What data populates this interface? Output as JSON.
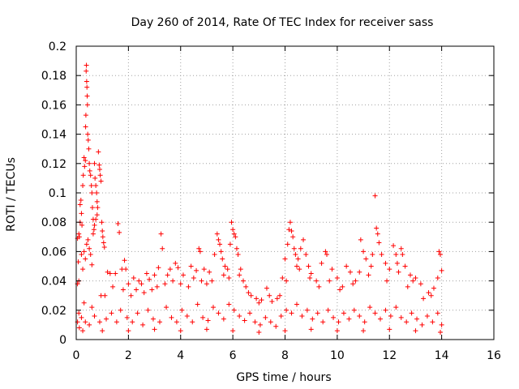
{
  "chart_data": {
    "type": "scatter",
    "title": "Day 260 of 2014, Rate Of TEC Index for receiver sass",
    "xlabel": "GPS time / hours",
    "ylabel": "ROTI / TECUs",
    "xlim": [
      0,
      16
    ],
    "ylim": [
      0,
      0.2
    ],
    "grid": true,
    "marker": "+",
    "color": "#ff0000",
    "x_ticks": [
      0,
      2,
      4,
      6,
      8,
      10,
      12,
      14,
      16
    ],
    "x_tick_labels": [
      "0",
      "2",
      "4",
      "6",
      "8",
      "10",
      "12",
      "14",
      "16"
    ],
    "y_ticks": [
      0,
      0.02,
      0.04,
      0.06,
      0.08,
      0.1,
      0.12,
      0.14,
      0.16,
      0.18,
      0.2
    ],
    "y_tick_labels": [
      "0",
      "0.02",
      "0.04",
      "0.06",
      "0.08",
      "0.1",
      "0.12",
      "0.14",
      "0.16",
      "0.18",
      "0.2"
    ],
    "series": [
      {
        "name": "ROTI",
        "points": [
          [
            0.05,
            0.069
          ],
          [
            0.08,
            0.053
          ],
          [
            0.1,
            0.04
          ],
          [
            0.12,
            0.07
          ],
          [
            0.15,
            0.092
          ],
          [
            0.18,
            0.095
          ],
          [
            0.2,
            0.086
          ],
          [
            0.22,
            0.078
          ],
          [
            0.25,
            0.105
          ],
          [
            0.27,
            0.112
          ],
          [
            0.3,
            0.124
          ],
          [
            0.32,
            0.118
          ],
          [
            0.35,
            0.122
          ],
          [
            0.36,
            0.145
          ],
          [
            0.37,
            0.153
          ],
          [
            0.38,
            0.183
          ],
          [
            0.39,
            0.187
          ],
          [
            0.4,
            0.176
          ],
          [
            0.41,
            0.172
          ],
          [
            0.42,
            0.166
          ],
          [
            0.43,
            0.16
          ],
          [
            0.44,
            0.14
          ],
          [
            0.46,
            0.136
          ],
          [
            0.48,
            0.13
          ],
          [
            0.5,
            0.12
          ],
          [
            0.52,
            0.115
          ],
          [
            0.55,
            0.112
          ],
          [
            0.58,
            0.105
          ],
          [
            0.6,
            0.1
          ],
          [
            0.62,
            0.09
          ],
          [
            0.65,
            0.082
          ],
          [
            0.68,
            0.075
          ],
          [
            0.7,
            0.12
          ],
          [
            0.72,
            0.11
          ],
          [
            0.75,
            0.105
          ],
          [
            0.78,
            0.1
          ],
          [
            0.8,
            0.094
          ],
          [
            0.82,
            0.09
          ],
          [
            0.85,
            0.128
          ],
          [
            0.88,
            0.119
          ],
          [
            0.9,
            0.116
          ],
          [
            0.92,
            0.112
          ],
          [
            0.95,
            0.108
          ],
          [
            0.98,
            0.08
          ],
          [
            1.0,
            0.074
          ],
          [
            1.02,
            0.07
          ],
          [
            1.05,
            0.066
          ],
          [
            1.08,
            0.063
          ],
          [
            0.45,
            0.068
          ],
          [
            0.5,
            0.062
          ],
          [
            0.55,
            0.058
          ],
          [
            0.6,
            0.051
          ],
          [
            0.65,
            0.072
          ],
          [
            0.7,
            0.078
          ],
          [
            0.75,
            0.082
          ],
          [
            0.8,
            0.085
          ],
          [
            0.3,
            0.06
          ],
          [
            0.35,
            0.055
          ],
          [
            0.25,
            0.048
          ],
          [
            0.2,
            0.058
          ],
          [
            0.4,
            0.065
          ],
          [
            0.15,
            0.08
          ],
          [
            0.1,
            0.072
          ],
          [
            0.05,
            0.038
          ],
          [
            1.2,
            0.046
          ],
          [
            1.3,
            0.045
          ],
          [
            1.5,
            0.045
          ],
          [
            1.6,
            0.079
          ],
          [
            1.65,
            0.073
          ],
          [
            1.75,
            0.048
          ],
          [
            1.85,
            0.054
          ],
          [
            1.9,
            0.048
          ],
          [
            2.0,
            0.038
          ],
          [
            2.2,
            0.042
          ],
          [
            2.4,
            0.04
          ],
          [
            2.5,
            0.038
          ],
          [
            2.7,
            0.045
          ],
          [
            2.8,
            0.041
          ],
          [
            3.0,
            0.044
          ],
          [
            3.15,
            0.049
          ],
          [
            3.25,
            0.072
          ],
          [
            3.3,
            0.062
          ],
          [
            3.5,
            0.044
          ],
          [
            3.6,
            0.048
          ],
          [
            3.8,
            0.052
          ],
          [
            3.9,
            0.049
          ],
          [
            4.1,
            0.044
          ],
          [
            4.4,
            0.05
          ],
          [
            4.6,
            0.047
          ],
          [
            4.7,
            0.062
          ],
          [
            4.75,
            0.06
          ],
          [
            4.9,
            0.048
          ],
          [
            5.1,
            0.046
          ],
          [
            5.3,
            0.058
          ],
          [
            5.4,
            0.072
          ],
          [
            5.45,
            0.068
          ],
          [
            5.5,
            0.065
          ],
          [
            5.55,
            0.06
          ],
          [
            5.6,
            0.055
          ],
          [
            5.7,
            0.05
          ],
          [
            5.8,
            0.048
          ],
          [
            5.9,
            0.065
          ],
          [
            5.95,
            0.08
          ],
          [
            6.0,
            0.075
          ],
          [
            6.05,
            0.072
          ],
          [
            6.1,
            0.07
          ],
          [
            6.15,
            0.062
          ],
          [
            6.2,
            0.058
          ],
          [
            6.3,
            0.048
          ],
          [
            6.5,
            0.036
          ],
          [
            6.7,
            0.03
          ],
          [
            6.9,
            0.028
          ],
          [
            7.1,
            0.027
          ],
          [
            7.3,
            0.035
          ],
          [
            7.5,
            0.026
          ],
          [
            7.7,
            0.028
          ],
          [
            7.9,
            0.042
          ],
          [
            8.0,
            0.055
          ],
          [
            8.1,
            0.065
          ],
          [
            8.15,
            0.075
          ],
          [
            8.2,
            0.08
          ],
          [
            8.25,
            0.074
          ],
          [
            8.3,
            0.07
          ],
          [
            8.35,
            0.062
          ],
          [
            8.4,
            0.058
          ],
          [
            8.5,
            0.055
          ],
          [
            8.6,
            0.062
          ],
          [
            8.7,
            0.068
          ],
          [
            8.8,
            0.058
          ],
          [
            8.9,
            0.05
          ],
          [
            9.0,
            0.045
          ],
          [
            9.2,
            0.04
          ],
          [
            9.4,
            0.052
          ],
          [
            9.55,
            0.06
          ],
          [
            9.6,
            0.058
          ],
          [
            9.8,
            0.048
          ],
          [
            10.0,
            0.042
          ],
          [
            10.2,
            0.036
          ],
          [
            10.35,
            0.05
          ],
          [
            10.5,
            0.046
          ],
          [
            10.7,
            0.04
          ],
          [
            10.85,
            0.046
          ],
          [
            10.9,
            0.068
          ],
          [
            11.0,
            0.06
          ],
          [
            11.1,
            0.055
          ],
          [
            11.3,
            0.05
          ],
          [
            11.35,
            0.058
          ],
          [
            11.45,
            0.098
          ],
          [
            11.5,
            0.076
          ],
          [
            11.55,
            0.072
          ],
          [
            11.6,
            0.066
          ],
          [
            11.7,
            0.058
          ],
          [
            11.85,
            0.052
          ],
          [
            12.0,
            0.048
          ],
          [
            12.15,
            0.064
          ],
          [
            12.25,
            0.058
          ],
          [
            12.3,
            0.052
          ],
          [
            12.45,
            0.062
          ],
          [
            12.5,
            0.058
          ],
          [
            12.6,
            0.05
          ],
          [
            12.8,
            0.044
          ],
          [
            13.0,
            0.042
          ],
          [
            13.2,
            0.038
          ],
          [
            13.5,
            0.032
          ],
          [
            13.7,
            0.035
          ],
          [
            13.85,
            0.042
          ],
          [
            13.9,
            0.06
          ],
          [
            13.95,
            0.058
          ],
          [
            14.0,
            0.047
          ],
          [
            13.6,
            0.03
          ],
          [
            13.3,
            0.028
          ],
          [
            12.9,
            0.04
          ],
          [
            12.7,
            0.036
          ],
          [
            12.35,
            0.046
          ],
          [
            11.9,
            0.04
          ],
          [
            11.2,
            0.044
          ],
          [
            10.6,
            0.038
          ],
          [
            10.1,
            0.034
          ],
          [
            9.7,
            0.04
          ],
          [
            9.3,
            0.036
          ],
          [
            8.95,
            0.042
          ],
          [
            8.55,
            0.048
          ],
          [
            8.45,
            0.05
          ],
          [
            8.05,
            0.04
          ],
          [
            7.8,
            0.03
          ],
          [
            7.4,
            0.03
          ],
          [
            7.0,
            0.025
          ],
          [
            6.6,
            0.032
          ],
          [
            6.4,
            0.04
          ],
          [
            6.25,
            0.044
          ],
          [
            5.85,
            0.042
          ],
          [
            5.65,
            0.044
          ],
          [
            5.2,
            0.04
          ],
          [
            5.0,
            0.038
          ],
          [
            4.8,
            0.04
          ],
          [
            4.5,
            0.042
          ],
          [
            4.3,
            0.036
          ],
          [
            4.0,
            0.038
          ],
          [
            3.7,
            0.04
          ],
          [
            3.4,
            0.038
          ],
          [
            3.1,
            0.036
          ],
          [
            2.9,
            0.034
          ],
          [
            2.6,
            0.032
          ],
          [
            2.3,
            0.034
          ],
          [
            2.1,
            0.03
          ],
          [
            1.8,
            0.034
          ],
          [
            1.4,
            0.036
          ],
          [
            1.1,
            0.03
          ],
          [
            0.95,
            0.03
          ],
          [
            0.6,
            0.022
          ],
          [
            0.3,
            0.025
          ],
          [
            0.1,
            0.018
          ],
          [
            0.05,
            0.012
          ],
          [
            0.12,
            0.008
          ],
          [
            0.2,
            0.015
          ],
          [
            0.35,
            0.012
          ],
          [
            0.5,
            0.01
          ],
          [
            0.7,
            0.016
          ],
          [
            0.9,
            0.012
          ],
          [
            1.15,
            0.014
          ],
          [
            1.35,
            0.018
          ],
          [
            1.55,
            0.012
          ],
          [
            1.7,
            0.02
          ],
          [
            1.95,
            0.015
          ],
          [
            2.15,
            0.012
          ],
          [
            2.35,
            0.018
          ],
          [
            2.55,
            0.01
          ],
          [
            2.75,
            0.02
          ],
          [
            2.95,
            0.014
          ],
          [
            3.2,
            0.012
          ],
          [
            3.45,
            0.022
          ],
          [
            3.65,
            0.015
          ],
          [
            3.85,
            0.012
          ],
          [
            4.05,
            0.02
          ],
          [
            4.25,
            0.016
          ],
          [
            4.45,
            0.012
          ],
          [
            4.65,
            0.024
          ],
          [
            4.85,
            0.015
          ],
          [
            5.05,
            0.013
          ],
          [
            5.25,
            0.022
          ],
          [
            5.45,
            0.018
          ],
          [
            5.65,
            0.014
          ],
          [
            5.85,
            0.024
          ],
          [
            6.05,
            0.02
          ],
          [
            6.25,
            0.016
          ],
          [
            6.45,
            0.013
          ],
          [
            6.65,
            0.018
          ],
          [
            6.85,
            0.012
          ],
          [
            7.05,
            0.01
          ],
          [
            7.25,
            0.015
          ],
          [
            7.45,
            0.012
          ],
          [
            7.65,
            0.009
          ],
          [
            7.85,
            0.016
          ],
          [
            8.05,
            0.02
          ],
          [
            8.25,
            0.018
          ],
          [
            8.45,
            0.024
          ],
          [
            8.65,
            0.016
          ],
          [
            8.85,
            0.02
          ],
          [
            9.05,
            0.014
          ],
          [
            9.25,
            0.018
          ],
          [
            9.45,
            0.012
          ],
          [
            9.65,
            0.02
          ],
          [
            9.85,
            0.015
          ],
          [
            10.05,
            0.012
          ],
          [
            10.25,
            0.018
          ],
          [
            10.45,
            0.014
          ],
          [
            10.65,
            0.02
          ],
          [
            10.85,
            0.016
          ],
          [
            11.05,
            0.012
          ],
          [
            11.25,
            0.022
          ],
          [
            11.45,
            0.018
          ],
          [
            11.65,
            0.014
          ],
          [
            11.85,
            0.02
          ],
          [
            12.05,
            0.016
          ],
          [
            12.25,
            0.022
          ],
          [
            12.45,
            0.015
          ],
          [
            12.65,
            0.012
          ],
          [
            12.85,
            0.018
          ],
          [
            13.05,
            0.014
          ],
          [
            13.25,
            0.01
          ],
          [
            13.45,
            0.016
          ],
          [
            13.65,
            0.012
          ],
          [
            13.85,
            0.018
          ],
          [
            14.0,
            0.01
          ],
          [
            0.25,
            0.006
          ],
          [
            1.0,
            0.006
          ],
          [
            2.0,
            0.006
          ],
          [
            3.0,
            0.007
          ],
          [
            4.0,
            0.006
          ],
          [
            5.0,
            0.007
          ],
          [
            6.0,
            0.006
          ],
          [
            7.0,
            0.005
          ],
          [
            8.0,
            0.006
          ],
          [
            9.0,
            0.007
          ],
          [
            10.0,
            0.006
          ],
          [
            11.0,
            0.006
          ],
          [
            12.0,
            0.007
          ],
          [
            13.0,
            0.006
          ],
          [
            13.95,
            0.005
          ]
        ]
      }
    ]
  }
}
